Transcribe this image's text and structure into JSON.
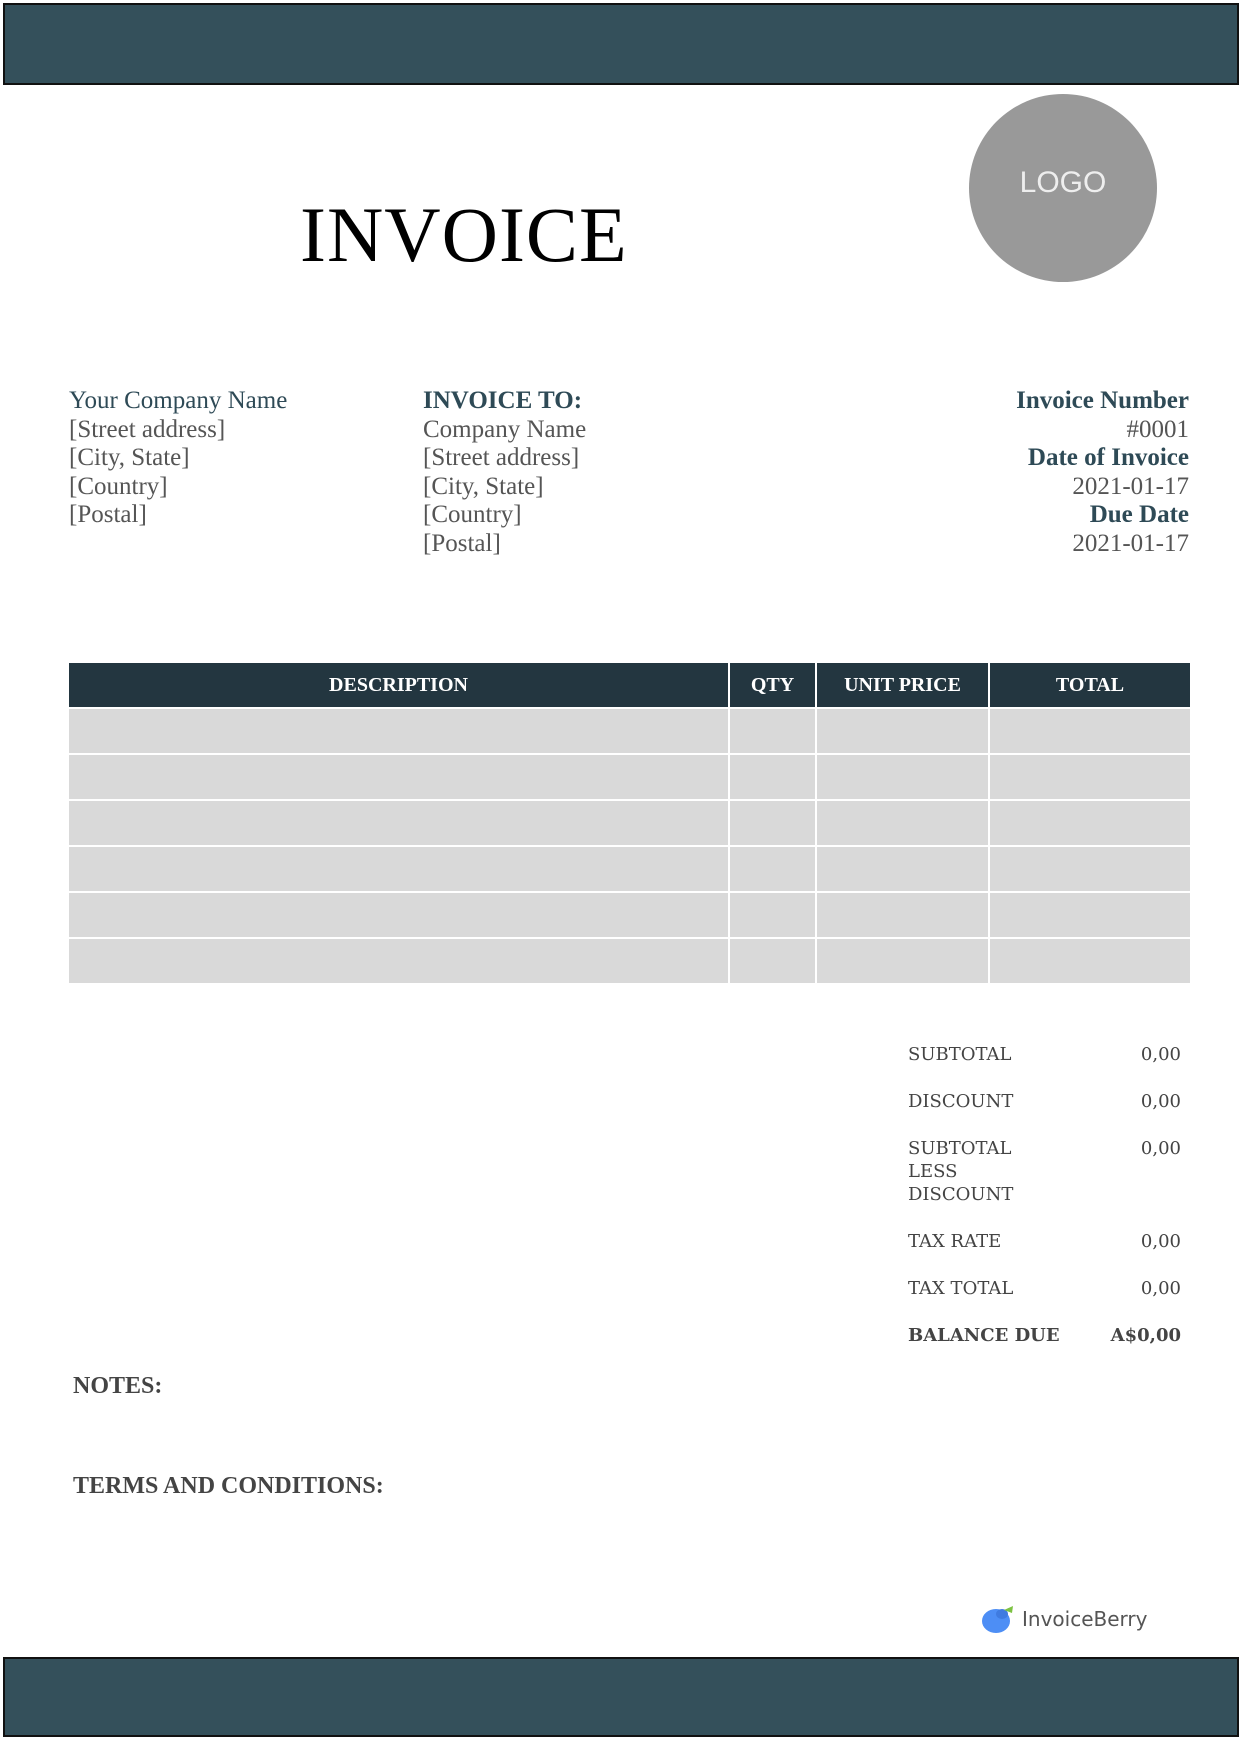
{
  "logo_placeholder": "LOGO",
  "title": "INVOICE",
  "from": {
    "name": "Your Company Name",
    "lines": [
      "[Street address]",
      "[City, State]",
      "[Country]",
      "[Postal]"
    ]
  },
  "to": {
    "heading": "INVOICE TO:",
    "name": "Company Name",
    "lines": [
      "[Street address]",
      "[City, State]",
      "[Country]",
      "[Postal]"
    ]
  },
  "meta": {
    "number_label": "Invoice Number",
    "number": "#0001",
    "date_label": "Date of Invoice",
    "date": "2021-01-17",
    "due_label": "Due Date",
    "due": "2021-01-17"
  },
  "table": {
    "headers": [
      "DESCRIPTION",
      "QTY",
      "UNIT PRICE",
      "TOTAL"
    ]
  },
  "totals": [
    {
      "label": "SUBTOTAL",
      "value": "0,00"
    },
    {
      "label": "DISCOUNT",
      "value": "0,00"
    },
    {
      "label": "SUBTOTAL LESS DISCOUNT",
      "value": "0,00"
    },
    {
      "label": "TAX RATE",
      "value": "0,00"
    },
    {
      "label": "TAX TOTAL",
      "value": "0,00"
    },
    {
      "label": "BALANCE DUE",
      "value": "A$0,00"
    }
  ],
  "notes_label": "NOTES:",
  "terms_label": "TERMS AND CONDITIONS:",
  "brand": "InvoiceBerry",
  "colors": {
    "bar": "#34505b",
    "table_header": "#233640",
    "row": "#d9d9d9",
    "accent_text": "#2e4a56"
  }
}
